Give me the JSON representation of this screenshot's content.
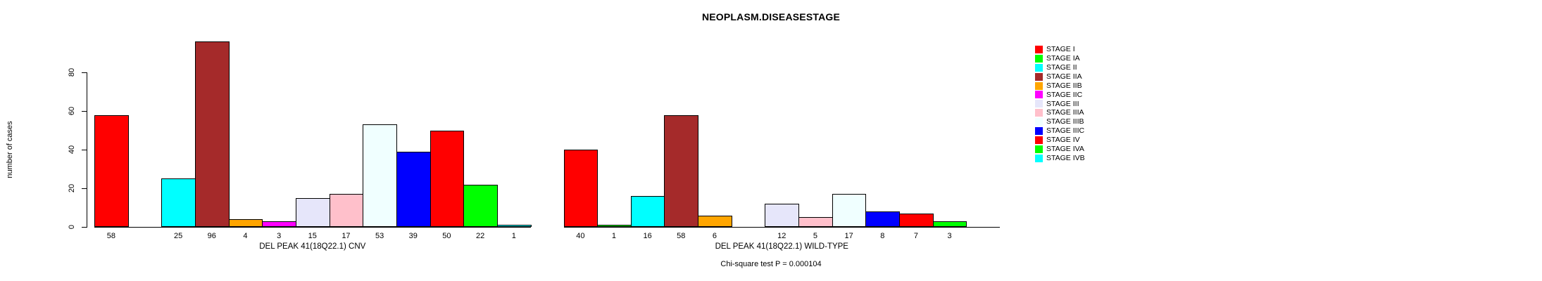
{
  "chart_data": {
    "type": "bar",
    "title": "NEOPLASM.DISEASESTAGE",
    "ylabel": "number of cases",
    "ylim": [
      0,
      80
    ],
    "yticks": [
      0,
      20,
      40,
      60,
      80
    ],
    "grid": false,
    "legend_position": "right",
    "footnote": "Chi-square test P = 0.000104",
    "stages": [
      {
        "name": "STAGE I",
        "color": "#FF0000"
      },
      {
        "name": "STAGE IA",
        "color": "#00FF00"
      },
      {
        "name": "STAGE II",
        "color": "#00FFFF"
      },
      {
        "name": "STAGE IIA",
        "color": "#A52A2A"
      },
      {
        "name": "STAGE IIB",
        "color": "#FFA500"
      },
      {
        "name": "STAGE IIC",
        "color": "#FF00FF"
      },
      {
        "name": "STAGE III",
        "color": "#E6E6FA"
      },
      {
        "name": "STAGE IIIA",
        "color": "#FFC0CB"
      },
      {
        "name": "STAGE IIIB",
        "color": "#F0FFFF"
      },
      {
        "name": "STAGE IIIC",
        "color": "#0000FF"
      },
      {
        "name": "STAGE IV",
        "color": "#FF0000"
      },
      {
        "name": "STAGE IVA",
        "color": "#00FF00"
      },
      {
        "name": "STAGE IVB",
        "color": "#00FFFF"
      }
    ],
    "groups": [
      {
        "label": "DEL PEAK 41(18Q22.1) CNV",
        "values": [
          58,
          0,
          25,
          96,
          4,
          3,
          15,
          17,
          53,
          39,
          50,
          22,
          1
        ]
      },
      {
        "label": "DEL PEAK 41(18Q22.1) WILD-TYPE",
        "values": [
          40,
          1,
          16,
          58,
          6,
          0,
          12,
          5,
          17,
          8,
          7,
          3,
          0
        ]
      }
    ]
  }
}
